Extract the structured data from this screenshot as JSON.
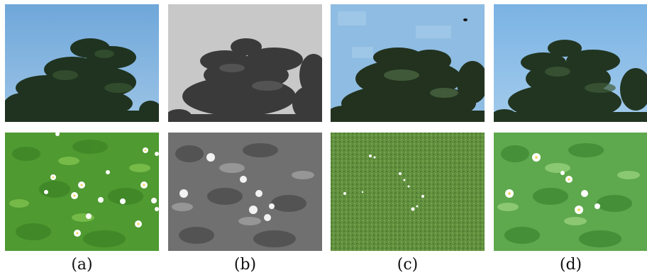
{
  "captions": [
    "(a)",
    "(b)",
    "(c)",
    "(d)"
  ],
  "rows": [
    {
      "subject": "tree-against-sky"
    },
    {
      "subject": "grass-with-daisies"
    }
  ],
  "colors": {
    "sky_a": "#7fb1dd",
    "sky_c": "#8dbbe0",
    "sky_d": "#86bae6",
    "tree_dark": "#1d2a1c",
    "gray_sky": "#c9c9c9",
    "grass_a": "#4e9a2f",
    "grass_b": "#6f6f6f",
    "grass_c": "#5e8d3c",
    "grass_d": "#5aa24a"
  }
}
